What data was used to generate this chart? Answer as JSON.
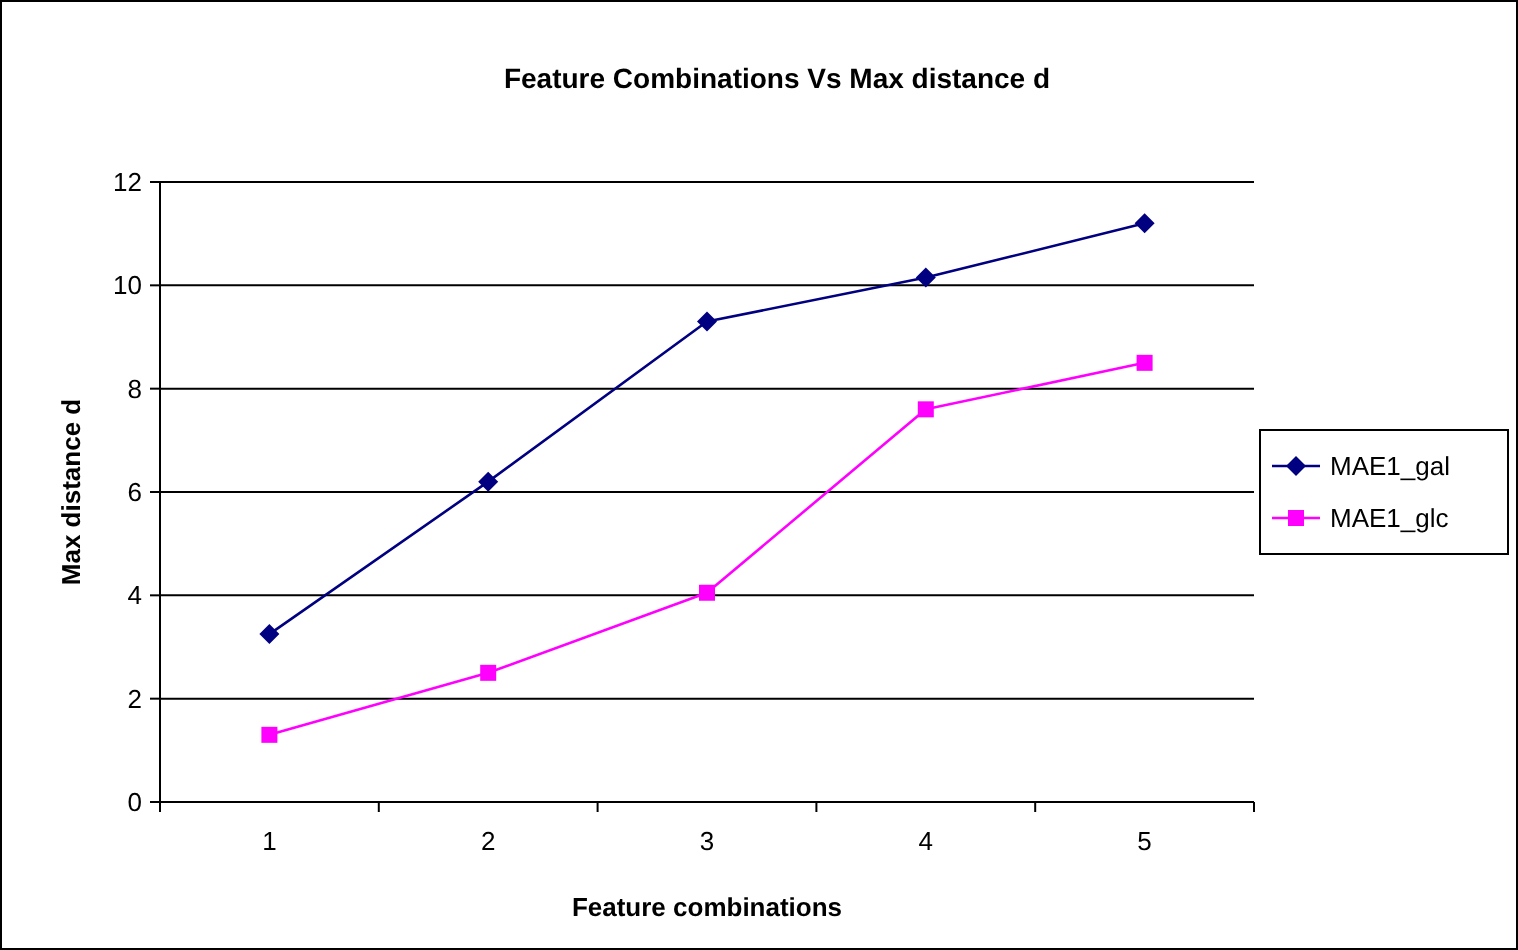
{
  "chart_data": {
    "type": "line",
    "title": "Feature Combinations Vs Max distance d",
    "xlabel": "Feature combinations",
    "ylabel": "Max distance d",
    "categories": [
      "1",
      "2",
      "3",
      "4",
      "5"
    ],
    "series": [
      {
        "name": "MAE1_gal",
        "color": "#000080",
        "marker": "diamond",
        "values": [
          3.25,
          6.2,
          9.3,
          10.15,
          11.2
        ]
      },
      {
        "name": "MAE1_glc",
        "color": "#ff00ff",
        "marker": "square",
        "values": [
          1.3,
          2.5,
          4.05,
          7.6,
          8.5
        ]
      }
    ],
    "ylim": [
      0,
      12
    ],
    "yticks": [
      0,
      2,
      4,
      6,
      8,
      10,
      12
    ],
    "grid": "y",
    "legend": "right",
    "line_style": "solid"
  }
}
